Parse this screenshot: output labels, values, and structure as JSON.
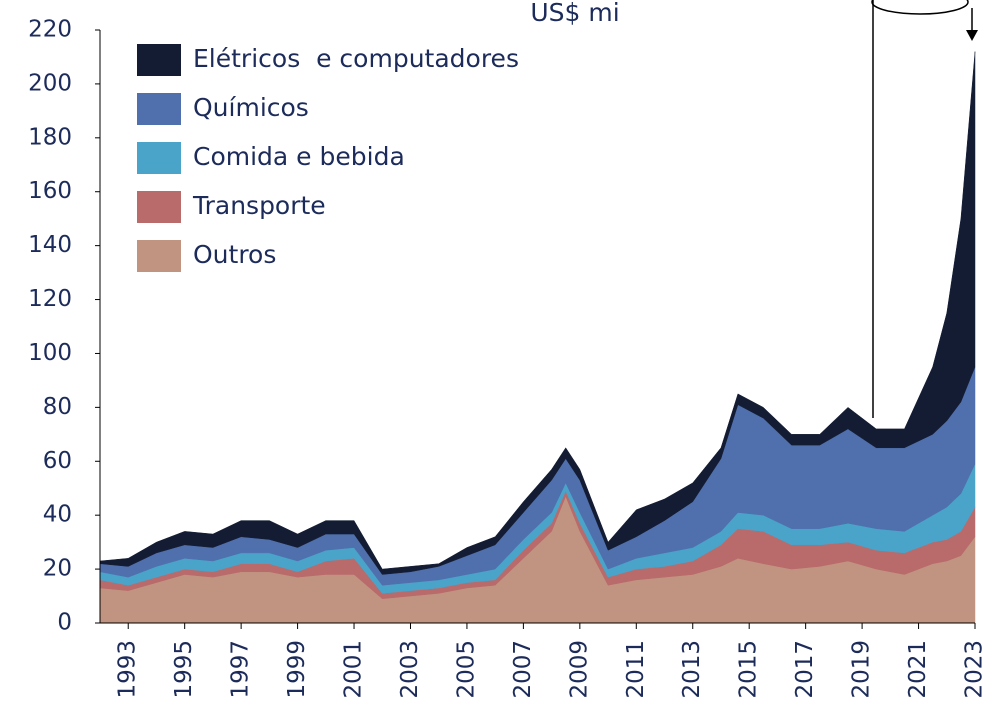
{
  "chart_data": {
    "type": "stacked-area",
    "annotation": "US$ mi",
    "x": [
      1992,
      1993,
      1994,
      1995,
      1996,
      1997,
      1998,
      1999,
      2000,
      2001,
      2002,
      2003,
      2004,
      2005,
      2006,
      2007,
      2008,
      2008.5,
      2009,
      2010,
      2011,
      2012,
      2013,
      2014,
      2014.6,
      2015.5,
      2016.5,
      2017.5,
      2018.5,
      2019.5,
      2020.5,
      2021.5,
      2022,
      2022.5,
      2023
    ],
    "series": [
      {
        "name": "Outros",
        "color": "#c09480",
        "values": [
          13,
          12,
          15,
          18,
          17,
          19,
          19,
          17,
          18,
          18,
          9,
          10,
          11,
          13,
          14,
          24,
          34,
          47,
          34,
          14,
          16,
          17,
          18,
          21,
          24,
          22,
          20,
          21,
          23,
          20,
          18,
          22,
          23,
          25,
          32
        ]
      },
      {
        "name": "Transporte",
        "color": "#b96a6a",
        "values": [
          3,
          2,
          2,
          2,
          2,
          3,
          3,
          2,
          5,
          6,
          2,
          2,
          2,
          2,
          2,
          3,
          3,
          2,
          3,
          3,
          4,
          4,
          5,
          8,
          11,
          12,
          9,
          8,
          7,
          7,
          8,
          8,
          8,
          9,
          11
        ]
      },
      {
        "name": "Comida e bebida",
        "color": "#4aa3c8",
        "values": [
          3,
          3,
          4,
          4,
          4,
          4,
          4,
          4,
          4,
          4,
          3,
          3,
          3,
          3,
          4,
          4,
          4,
          3,
          4,
          3,
          4,
          5,
          5,
          5,
          6,
          6,
          6,
          6,
          7,
          8,
          8,
          10,
          12,
          14,
          16
        ]
      },
      {
        "name": "Químicos",
        "color": "#4f6fad",
        "values": [
          3,
          4,
          5,
          5,
          5,
          6,
          5,
          5,
          6,
          5,
          4,
          4,
          5,
          7,
          9,
          10,
          12,
          9,
          12,
          7,
          8,
          12,
          17,
          27,
          40,
          36,
          31,
          31,
          35,
          30,
          31,
          30,
          32,
          34,
          36
        ]
      },
      {
        "name": "Elétricos  e computadores",
        "color": "#131c33",
        "values": [
          1,
          3,
          4,
          5,
          5,
          6,
          7,
          5,
          5,
          5,
          2,
          2,
          1,
          3,
          3,
          4,
          4,
          4,
          4,
          3,
          10,
          8,
          7,
          4,
          4,
          4,
          4,
          4,
          8,
          7,
          7,
          25,
          40,
          68,
          117
        ]
      }
    ],
    "xlim": [
      1992,
      2023
    ],
    "xticks": [
      1993,
      1995,
      1997,
      1999,
      2001,
      2003,
      2005,
      2007,
      2009,
      2011,
      2013,
      2015,
      2017,
      2019,
      2021,
      2023
    ],
    "ylim": [
      0,
      220
    ],
    "yticks": [
      0,
      20,
      40,
      60,
      80,
      100,
      120,
      140,
      160,
      180,
      200,
      220
    ]
  }
}
